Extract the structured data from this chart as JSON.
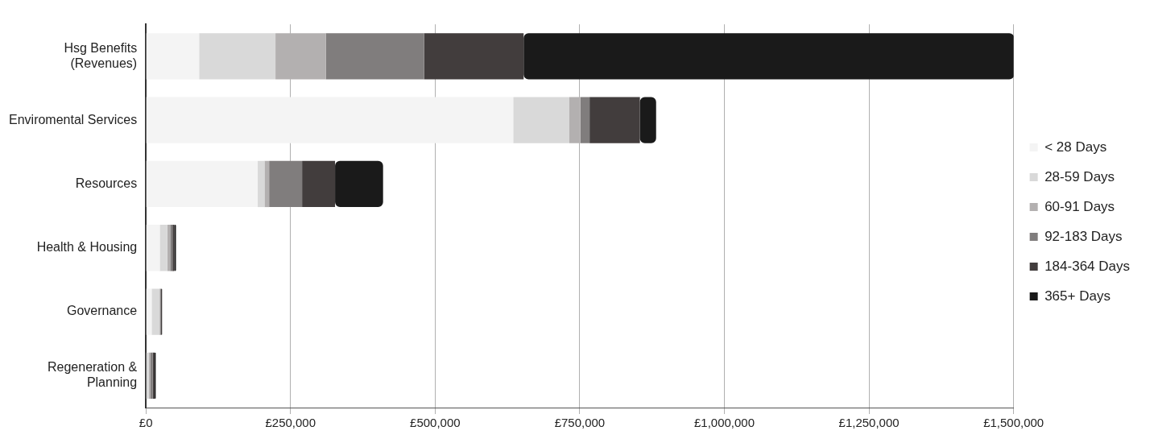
{
  "chart_data": {
    "type": "bar",
    "orientation": "horizontal",
    "stacked": true,
    "categories": [
      "Hsg Benefits\n(Revenues)",
      "Enviromental Services",
      "Resources",
      "Health & Housing",
      "Governance",
      "Regeneration &\nPlanning"
    ],
    "series": [
      {
        "name": "< 28 Days",
        "color": "#f4f4f4",
        "values": [
          92000,
          635000,
          193000,
          24000,
          10000,
          null
        ]
      },
      {
        "name": "28-59 Days",
        "color": "#d9d9d9",
        "values": [
          132000,
          97000,
          12000,
          13000,
          14000,
          5000
        ]
      },
      {
        "name": "60-91 Days",
        "color": "#b3b0b0",
        "values": [
          87000,
          19000,
          8000,
          5000,
          null,
          3000
        ]
      },
      {
        "name": "92-183 Days",
        "color": "#807d7d",
        "values": [
          170000,
          16000,
          57000,
          4000,
          2000,
          4000
        ]
      },
      {
        "name": "184-364 Days",
        "color": "#423d3d",
        "values": [
          172000,
          87000,
          57000,
          3000,
          2000,
          3000
        ]
      },
      {
        "name": "365+ Days",
        "color": "#1a1a1a",
        "values": [
          848000,
          28000,
          83000,
          3000,
          0,
          2000
        ]
      }
    ],
    "xlim": [
      0,
      1500000
    ],
    "xticks": [
      {
        "value": 0,
        "label": "£0"
      },
      {
        "value": 250000,
        "label": "£250,000"
      },
      {
        "value": 500000,
        "label": "£500,000"
      },
      {
        "value": 750000,
        "label": "£750,000"
      },
      {
        "value": 1000000,
        "label": "£1,000,000"
      },
      {
        "value": 1250000,
        "label": "£1,250,000"
      },
      {
        "value": 1500000,
        "label": "£1,500,000"
      }
    ],
    "grid": "x",
    "legend": "right"
  }
}
